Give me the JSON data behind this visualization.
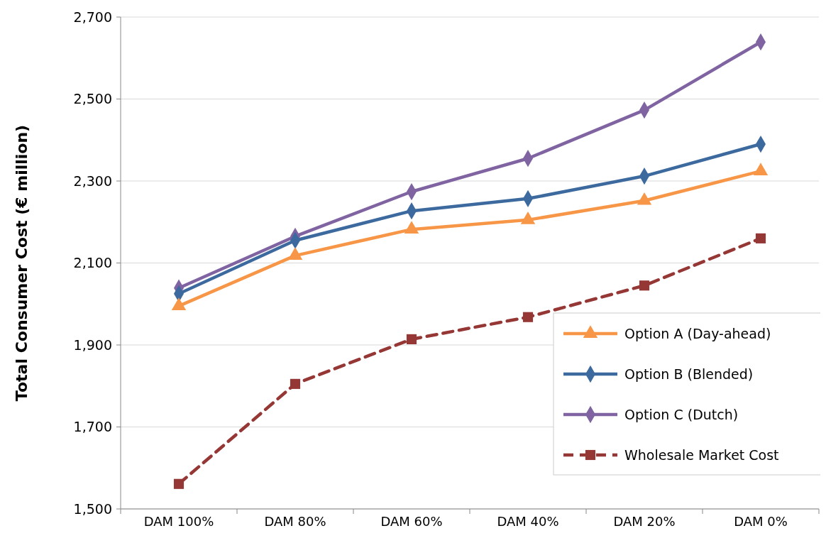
{
  "chart_data": {
    "type": "line",
    "ylabel": "Total Consumer Cost (€ million)",
    "categories": [
      "DAM 100%",
      "DAM 80%",
      "DAM 60%",
      "DAM 40%",
      "DAM 20%",
      "DAM 0%"
    ],
    "series": [
      {
        "name": "Option A (Day-ahead)",
        "color": "#f79646",
        "marker": "triangle",
        "line_style": "solid",
        "values": [
          1995,
          2118,
          2182,
          2205,
          2252,
          2324
        ]
      },
      {
        "name": "Option B (Blended)",
        "color": "#3d6a9e",
        "marker": "diamond",
        "line_style": "solid",
        "values": [
          2025,
          2155,
          2227,
          2257,
          2312,
          2390
        ]
      },
      {
        "name": "Option C (Dutch)",
        "color": "#8064a2",
        "marker": "diamond",
        "line_style": "solid",
        "values": [
          2039,
          2165,
          2274,
          2355,
          2473,
          2639
        ]
      },
      {
        "name": "Wholesale Market Cost",
        "color": "#953735",
        "marker": "square",
        "line_style": "dashed",
        "values": [
          1561,
          1805,
          1914,
          1968,
          2045,
          2160
        ]
      }
    ],
    "ylim": [
      1500,
      2700
    ],
    "yticks": [
      {
        "value": 1500,
        "label": "1,500"
      },
      {
        "value": 1700,
        "label": "1,700"
      },
      {
        "value": 1900,
        "label": "1,900"
      },
      {
        "value": 2100,
        "label": "2,100"
      },
      {
        "value": 2300,
        "label": "2,300"
      },
      {
        "value": 2500,
        "label": "2,500"
      },
      {
        "value": 2700,
        "label": "2,700"
      }
    ],
    "grid": "y",
    "legend": "bottom right"
  }
}
